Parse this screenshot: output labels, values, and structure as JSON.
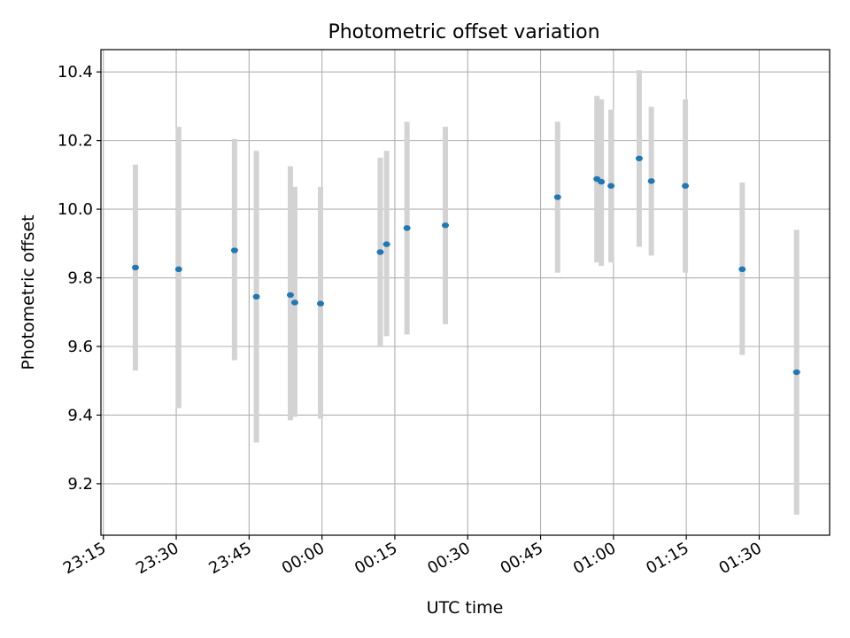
{
  "chart_data": {
    "type": "scatter",
    "title": "Photometric offset variation",
    "xlabel": "UTC time",
    "ylabel": "Photometric offset",
    "grid": true,
    "x_axis": "time",
    "xlim": [
      "23:14.5",
      "01:44.5"
    ],
    "ylim": [
      9.05,
      10.465
    ],
    "x_ticks": [
      "23:15",
      "23:30",
      "23:45",
      "00:00",
      "00:15",
      "00:30",
      "00:45",
      "01:00",
      "01:15",
      "01:30"
    ],
    "y_ticks": [
      "9.2",
      "9.4",
      "9.6",
      "9.8",
      "10.0",
      "10.2",
      "10.4"
    ],
    "marker_color": "#1f77b4",
    "errorbar_color": "#d3d3d3",
    "points": [
      {
        "time": "23:21.6",
        "y": 9.83,
        "lo": 9.53,
        "hi": 10.13
      },
      {
        "time": "23:30.5",
        "y": 9.825,
        "lo": 9.42,
        "hi": 10.24
      },
      {
        "time": "23:42.0",
        "y": 9.88,
        "lo": 9.56,
        "hi": 10.205
      },
      {
        "time": "23:46.5",
        "y": 9.745,
        "lo": 9.32,
        "hi": 10.17
      },
      {
        "time": "23:53.5",
        "y": 9.75,
        "lo": 9.385,
        "hi": 10.125
      },
      {
        "time": "23:54.4",
        "y": 9.728,
        "lo": 9.395,
        "hi": 10.065
      },
      {
        "time": "23:59.7",
        "y": 9.725,
        "lo": 9.39,
        "hi": 10.065
      },
      {
        "time": "00:12.0",
        "y": 9.875,
        "lo": 9.6,
        "hi": 10.15
      },
      {
        "time": "00:13.3",
        "y": 9.898,
        "lo": 9.63,
        "hi": 10.17
      },
      {
        "time": "00:17.5",
        "y": 9.945,
        "lo": 9.635,
        "hi": 10.255
      },
      {
        "time": "00:25.4",
        "y": 9.953,
        "lo": 9.665,
        "hi": 10.24
      },
      {
        "time": "00:48.5",
        "y": 10.035,
        "lo": 9.815,
        "hi": 10.255
      },
      {
        "time": "00:56.6",
        "y": 10.088,
        "lo": 9.845,
        "hi": 10.33
      },
      {
        "time": "00:57.5",
        "y": 10.08,
        "lo": 9.835,
        "hi": 10.32
      },
      {
        "time": "00:59.5",
        "y": 10.068,
        "lo": 9.845,
        "hi": 10.29
      },
      {
        "time": "01:05.3",
        "y": 10.148,
        "lo": 9.89,
        "hi": 10.405
      },
      {
        "time": "01:07.8",
        "y": 10.082,
        "lo": 9.865,
        "hi": 10.298
      },
      {
        "time": "01:14.8",
        "y": 10.068,
        "lo": 9.815,
        "hi": 10.32
      },
      {
        "time": "01:26.5",
        "y": 9.825,
        "lo": 9.575,
        "hi": 10.078
      },
      {
        "time": "01:37.7",
        "y": 9.525,
        "lo": 9.11,
        "hi": 9.94
      }
    ]
  }
}
